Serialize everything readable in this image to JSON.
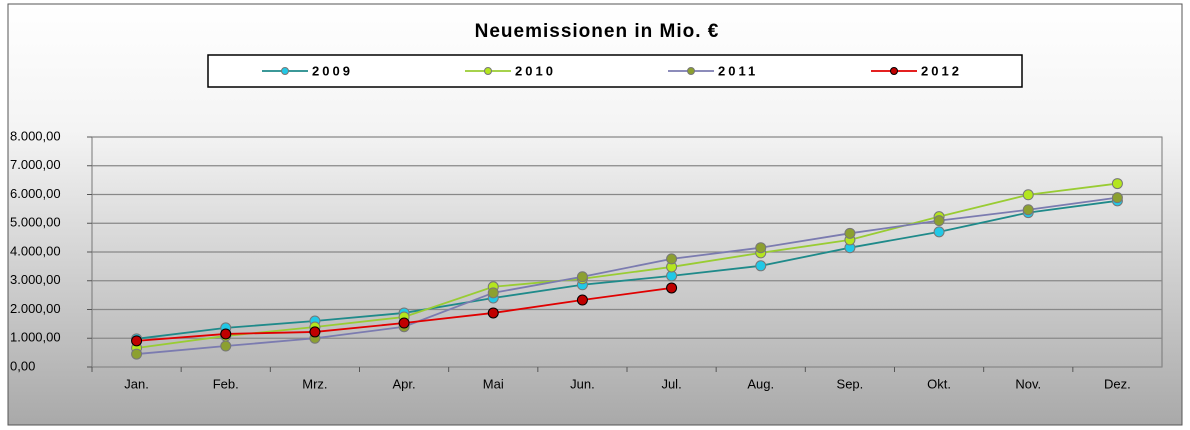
{
  "chart_data": {
    "type": "line",
    "title": "Neuemissionen in Mio. €",
    "categories": [
      "Jan.",
      "Feb.",
      "Mrz.",
      "Apr.",
      "Mai",
      "Jun.",
      "Jul.",
      "Aug.",
      "Sep.",
      "Okt.",
      "Nov.",
      "Dez."
    ],
    "series": [
      {
        "name": "2009",
        "color": "#1f8a8a",
        "marker_color": "#22c8e6",
        "values": [
          980,
          1360,
          1600,
          1880,
          2400,
          2860,
          3170,
          3520,
          4150,
          4700,
          5370,
          5780
        ]
      },
      {
        "name": "2010",
        "color": "#99cc33",
        "marker_color": "#b4e61e",
        "values": [
          660,
          1080,
          1390,
          1740,
          2790,
          3070,
          3480,
          3970,
          4420,
          5230,
          5990,
          6380
        ]
      },
      {
        "name": "2011",
        "color": "#7b7bb0",
        "marker_color": "#8ca030",
        "values": [
          450,
          730,
          1000,
          1400,
          2580,
          3140,
          3760,
          4150,
          4650,
          5090,
          5470,
          5890
        ]
      },
      {
        "name": "2012",
        "color": "#e00000",
        "marker_color": "#c00000",
        "values": [
          910,
          1150,
          1220,
          1530,
          1880,
          2330,
          2750,
          null,
          null,
          null,
          null,
          null
        ]
      }
    ],
    "ylim": [
      0,
      8000
    ],
    "yticks": [
      {
        "value": 0,
        "label": "0,00"
      },
      {
        "value": 1000,
        "label": "1.000,00"
      },
      {
        "value": 2000,
        "label": "2.000,00"
      },
      {
        "value": 3000,
        "label": "3.000,00"
      },
      {
        "value": 4000,
        "label": "4.000,00"
      },
      {
        "value": 5000,
        "label": "5.000,00"
      },
      {
        "value": 6000,
        "label": "6.000,00"
      },
      {
        "value": 7000,
        "label": "7.000,00"
      },
      {
        "value": 8000,
        "label": "8.000,00"
      }
    ],
    "grid": true,
    "legend": "top"
  }
}
